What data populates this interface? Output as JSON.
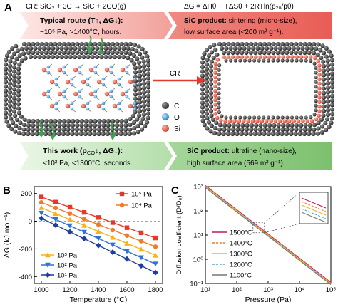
{
  "panel_a": {
    "label": "A",
    "reaction": "CR: SiO₂ + 3C → SiC + 2CO(g)",
    "energy_eq": "ΔG = ΔHθ − TΔSθ + 2RTln(p₂₀/pθ)",
    "typical_title": "Typical route (T↑, ΔG↓):",
    "typical_desc": "~10⁵ Pa, >1400°C, hours.",
    "product_typical_title": "SiC product:",
    "product_typical_rest": " sintering (micro-size),",
    "product_typical_desc": "low surface area (<200 m² g⁻¹).",
    "cr_label": "CR",
    "legend": [
      "C",
      "O",
      "Si"
    ],
    "work_title": "This work (p",
    "work_sub": "CO",
    "work_rest": "↓, ΔG↓):",
    "work_desc": "<10² Pa, <1300°C, seconds.",
    "product_work_title": "SiC product:",
    "product_work_rest": " ultrafine (nano-size),",
    "product_work_desc": "high surface area (569 m² g⁻¹).",
    "colors": {
      "carbon": "#3a3a3a",
      "oxygen": "#2f8fd0",
      "silicon": "#e0503a",
      "arrow_red": "#e23b2e",
      "banner_red": "#f0a6a0",
      "banner_green": "#a8d8a0"
    }
  },
  "chart_data": [
    {
      "label": "B",
      "type": "line",
      "xlabel": "Temperature (°C)",
      "ylabel": "ΔG (kJ mol⁻¹)",
      "xlim": [
        950,
        1850
      ],
      "ylim": [
        -450,
        250
      ],
      "xticks": [
        "1000",
        "1200",
        "1400",
        "1600",
        "1800"
      ],
      "yticks": [
        "-400",
        "-200",
        "0",
        "200"
      ],
      "x": [
        1000,
        1100,
        1200,
        1300,
        1400,
        1500,
        1600,
        1700,
        1800
      ],
      "series": [
        {
          "name": "10⁵ Pa",
          "color": "#e8372a",
          "marker": "square",
          "values": [
            175,
            138,
            101,
            64,
            27,
            -10,
            -47,
            -84,
            -121
          ]
        },
        {
          "name": "10⁴ Pa",
          "color": "#f07a2a",
          "marker": "circle",
          "values": [
            136,
            96,
            56,
            16,
            -24,
            -64,
            -104,
            -144,
            -184
          ]
        },
        {
          "name": "10³ Pa",
          "color": "#f5b21c",
          "marker": "triangle",
          "values": [
            98,
            55,
            12,
            -31,
            -74,
            -117,
            -160,
            -203,
            -246
          ]
        },
        {
          "name": "10² Pa",
          "color": "#2f72d6",
          "marker": "triangle-down",
          "values": [
            59,
            13,
            -33,
            -79,
            -125,
            -171,
            -217,
            -263,
            -309
          ]
        },
        {
          "name": "10¹ Pa",
          "color": "#1f3ea0",
          "marker": "diamond",
          "values": [
            21,
            -28,
            -77,
            -126,
            -175,
            -224,
            -273,
            -322,
            -371
          ]
        }
      ],
      "zero_line": true
    },
    {
      "label": "C",
      "type": "line",
      "xlabel": "Pressure (Pa)",
      "ylabel": "Diffusion coefficient (D/D₀)",
      "xscale": "log",
      "yscale": "log",
      "xlim": [
        10,
        100000
      ],
      "ylim": [
        0.1,
        1000
      ],
      "xticks": [
        "10¹",
        "10²",
        "10³",
        "10⁴",
        "10⁵"
      ],
      "yticks": [
        "10⁻¹",
        "10⁰",
        "10¹",
        "10²",
        "10³"
      ],
      "x": [
        10,
        100000
      ],
      "series": [
        {
          "name": "1500°C",
          "color": "#c2185b",
          "dash": "solid",
          "values": [
            1000,
            0.1
          ]
        },
        {
          "name": "1400°C",
          "color": "#f07a2a",
          "dash": "dashed",
          "values": [
            1000,
            0.1
          ]
        },
        {
          "name": "1300°C",
          "color": "#f5b21c",
          "dash": "solid",
          "values": [
            1000,
            0.1
          ]
        },
        {
          "name": "1200°C",
          "color": "#4aa8d8",
          "dash": "dashed",
          "values": [
            1000,
            0.1
          ]
        },
        {
          "name": "1100°C",
          "color": "#777777",
          "dash": "solid",
          "values": [
            1000,
            0.1
          ]
        }
      ],
      "inset_zoom": true
    }
  ]
}
